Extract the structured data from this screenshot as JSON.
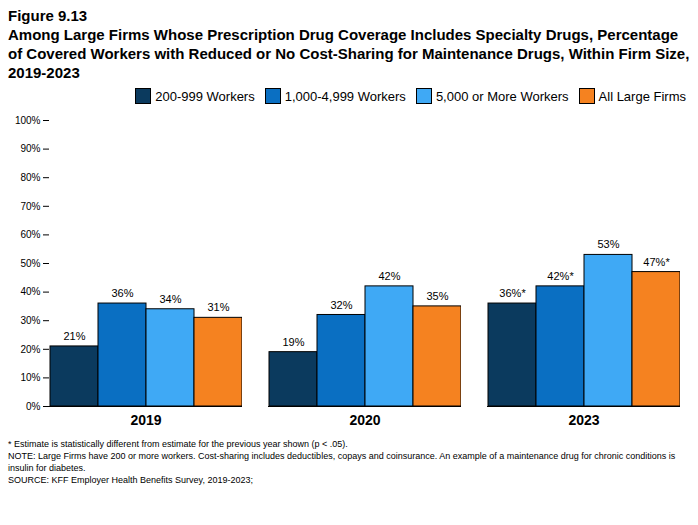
{
  "chart_data": {
    "type": "bar",
    "title": "Figure 9.13",
    "subtitle": "Among Large Firms Whose Prescription Drug Coverage Includes Specialty Drugs, Percentage of Covered Workers with Reduced or No Cost-Sharing for Maintenance Drugs, Within Firm Size, 2019-2023",
    "categories": [
      "2019",
      "2020",
      "2023"
    ],
    "series": [
      {
        "name": "200-999 Workers",
        "color": "#0b3a5e",
        "values": [
          21,
          19,
          36
        ],
        "value_labels": [
          "21%",
          "19%",
          "36%*"
        ]
      },
      {
        "name": "1,000-4,999 Workers",
        "color": "#0a6fc2",
        "values": [
          36,
          32,
          42
        ],
        "value_labels": [
          "36%",
          "32%",
          "42%*"
        ]
      },
      {
        "name": "5,000 or More Workers",
        "color": "#3fa9f5",
        "values": [
          34,
          42,
          53
        ],
        "value_labels": [
          "34%",
          "42%",
          "53%"
        ]
      },
      {
        "name": "All Large Firms",
        "color": "#f58220",
        "values": [
          31,
          35,
          47
        ],
        "value_labels": [
          "31%",
          "35%",
          "47%*"
        ]
      }
    ],
    "ylim": [
      0,
      100
    ],
    "yticks": [
      {
        "value": 0,
        "label": "0%"
      },
      {
        "value": 10,
        "label": "10%"
      },
      {
        "value": 20,
        "label": "20%"
      },
      {
        "value": 30,
        "label": "30%"
      },
      {
        "value": 40,
        "label": "40%"
      },
      {
        "value": 50,
        "label": "50%"
      },
      {
        "value": 60,
        "label": "60%"
      },
      {
        "value": 70,
        "label": "70%"
      },
      {
        "value": 80,
        "label": "80%"
      },
      {
        "value": 90,
        "label": "90%"
      },
      {
        "value": 100,
        "label": "100%"
      }
    ],
    "grid": false,
    "data_labels": true,
    "legend": "top",
    "notes": [
      "* Estimate is statistically different from estimate for the previous year shown (p < .05).",
      "NOTE: Large Firms have 200 or more workers.  Cost-sharing includes deductibles, copays and coinsurance. An example of a maintenance drug for chronic conditions is insulin for diabetes.",
      "SOURCE: KFF Employer Health Benefits Survey, 2019-2023;"
    ]
  }
}
